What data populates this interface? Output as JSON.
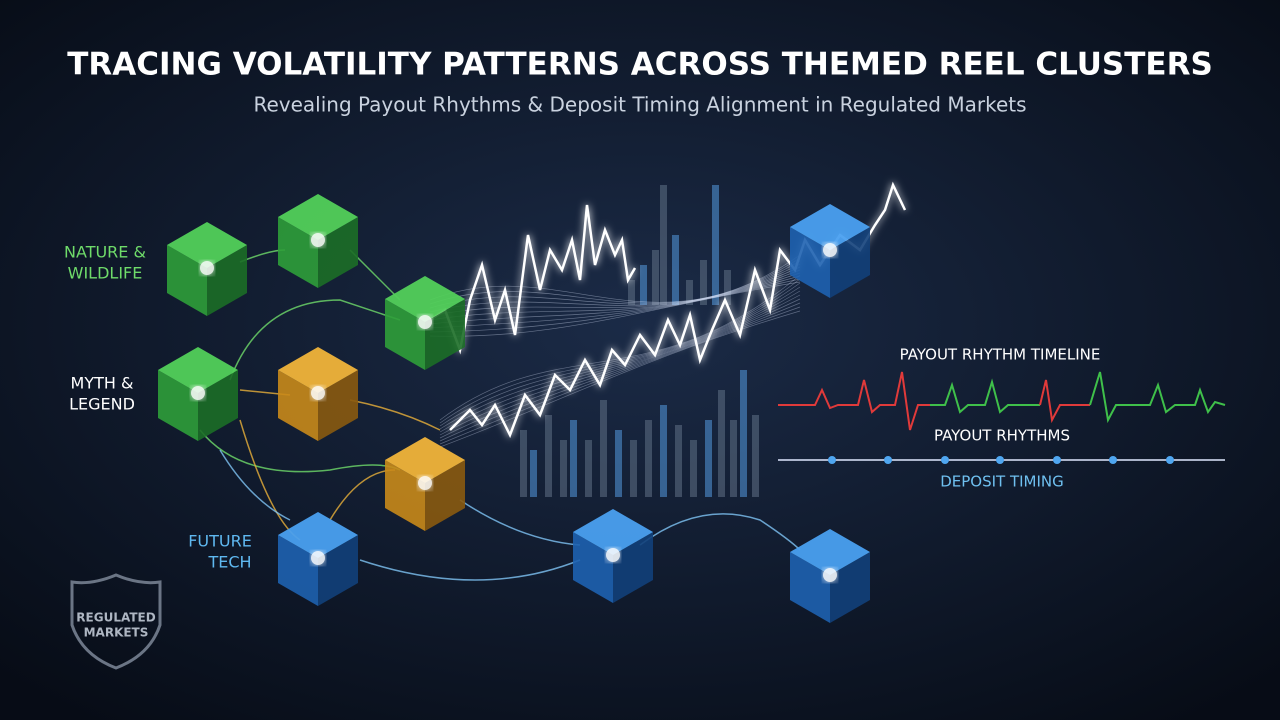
{
  "header": {
    "title": "TRACING VOLATILITY PATTERNS ACROSS THEMED REEL CLUSTERS",
    "subtitle": "Revealing Payout Rhythms & Deposit Timing Alignment in Regulated Markets"
  },
  "clusters": [
    {
      "lines": [
        "NATURE &",
        "WILDLIFE"
      ]
    },
    {
      "lines": [
        "MYTH &",
        "LEGEND"
      ]
    },
    {
      "lines": [
        "FUTURE",
        "TECH"
      ]
    }
  ],
  "timeline": {
    "title": "PAYOUT RHYTHM TIMELINE",
    "payout_label": "PAYOUT RHYTHMS",
    "deposit_label": "DEPOSIT TIMING"
  },
  "badge": {
    "lines": [
      "REGULATED",
      "MARKETS"
    ]
  }
}
